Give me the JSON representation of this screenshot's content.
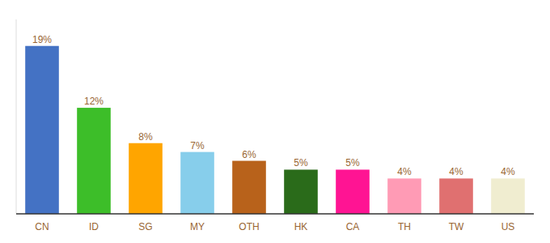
{
  "chart_data": {
    "type": "bar",
    "categories": [
      "CN",
      "ID",
      "SG",
      "MY",
      "OTH",
      "HK",
      "CA",
      "TH",
      "TW",
      "US"
    ],
    "values": [
      19,
      12,
      8,
      7,
      6,
      5,
      5,
      4,
      4,
      4
    ],
    "value_labels": [
      "19%",
      "12%",
      "8%",
      "7%",
      "6%",
      "5%",
      "5%",
      "4%",
      "4%",
      "4%"
    ],
    "colors": [
      "#4472C4",
      "#3DBE29",
      "#FFA500",
      "#87CEEB",
      "#B8621B",
      "#2A6B1A",
      "#FF1493",
      "#FF9BB5",
      "#E07070",
      "#F0EDD0"
    ],
    "ylim": [
      0,
      22
    ],
    "data_labels": true,
    "tick_labels": "x",
    "grid": false
  }
}
